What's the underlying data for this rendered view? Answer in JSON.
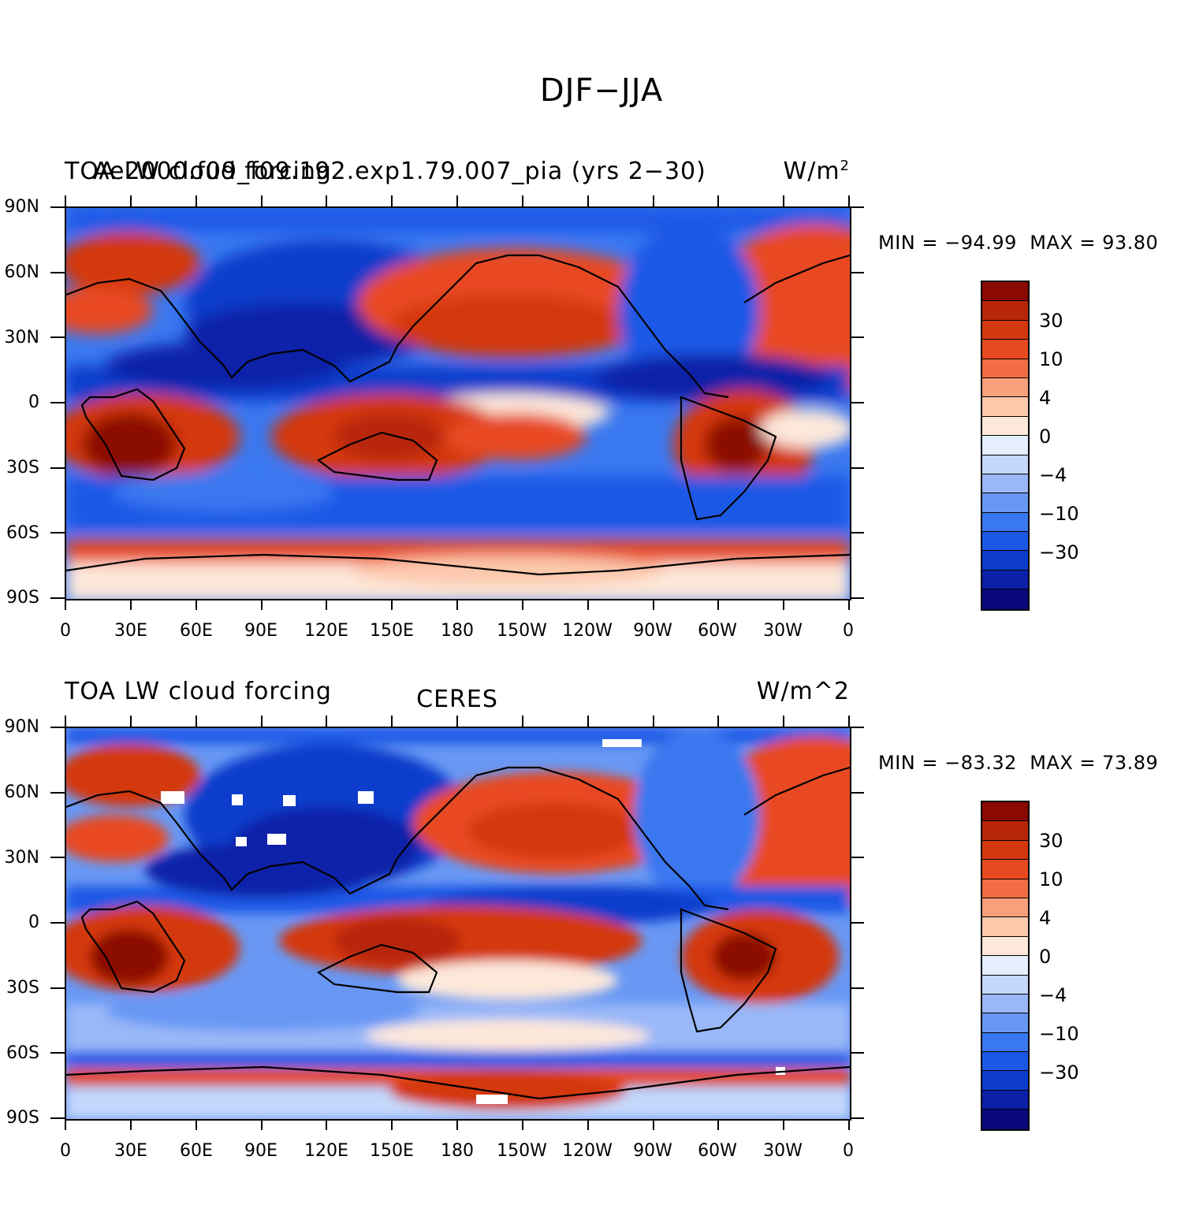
{
  "figure": {
    "title": "DJF−JJA"
  },
  "colors": {
    "levels": [
      "#08087c",
      "#0a20a8",
      "#0e3ccc",
      "#1a58e6",
      "#3a78f0",
      "#6898f4",
      "#9ab8f8",
      "#c4d8fc",
      "#e4eefe",
      "#fde8da",
      "#fcc8ac",
      "#f8a07c",
      "#f26c44",
      "#e84a20",
      "#d43810",
      "#b82608",
      "#8a0a02"
    ],
    "background": "#ffffff"
  },
  "axes": {
    "lat_labels": [
      "90N",
      "60N",
      "30N",
      "0",
      "30S",
      "60S",
      "90S"
    ],
    "lon_labels": [
      "0",
      "30E",
      "60E",
      "90E",
      "120E",
      "150E",
      "180",
      "150W",
      "120W",
      "90W",
      "60W",
      "30W",
      "0"
    ]
  },
  "panels": [
    {
      "left_title": "TOA LW cloud forcing",
      "overlay_title": "Ae2000.f09_f09.192.exp1.79.007_pia (yrs 2−30)",
      "center_title": "",
      "right_title": "W/m",
      "right_title_sup": "2",
      "min_label": "MIN = −94.99",
      "max_label": "MAX =   93.80",
      "colorbar_labels": [
        "30",
        "10",
        "4",
        "0",
        "−4",
        "−10",
        "−30"
      ]
    },
    {
      "left_title": "TOA LW cloud forcing",
      "overlay_title": "",
      "center_title": "CERES",
      "right_title": "W/m^2",
      "right_title_sup": "",
      "min_label": "MIN = −83.32",
      "max_label": "MAX =   73.89",
      "colorbar_labels": [
        "30",
        "10",
        "4",
        "0",
        "−4",
        "−10",
        "−30"
      ]
    }
  ]
}
